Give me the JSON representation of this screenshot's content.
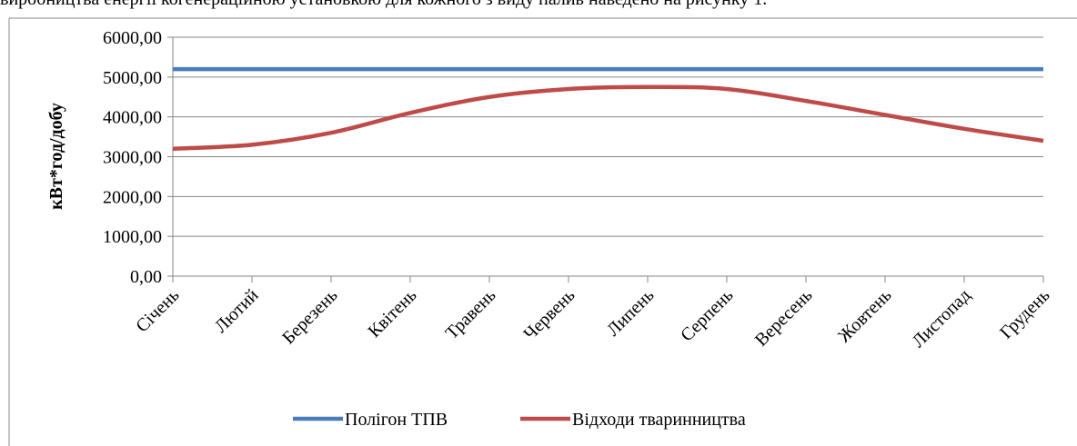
{
  "page_text": "виробництва енергії когенераційною установкою для кожного з виду палив наведено на рисунку 1.",
  "chart_data": {
    "type": "line",
    "y_label": "кВт*год/добу",
    "categories": [
      "Січень",
      "Лютий",
      "Березень",
      "Квітень",
      "Травень",
      "Червень",
      "Липень",
      "Серпень",
      "Вересень",
      "Жовтень",
      "Листопад",
      "Грудень"
    ],
    "series": [
      {
        "name": "Полігон ТПВ",
        "color": "#4a7ebb",
        "values": [
          5200,
          5200,
          5200,
          5200,
          5200,
          5200,
          5200,
          5200,
          5200,
          5200,
          5200,
          5200
        ]
      },
      {
        "name": "Відходи тваринництва",
        "color": "#be4b48",
        "values": [
          3200,
          3300,
          3600,
          4100,
          4500,
          4700,
          4750,
          4700,
          4400,
          4050,
          3700,
          3400
        ]
      }
    ],
    "ylim": [
      0,
      6000
    ],
    "yticks": [
      {
        "value": 0,
        "label": "0,00"
      },
      {
        "value": 1000,
        "label": "1000,00"
      },
      {
        "value": 2000,
        "label": "2000,00"
      },
      {
        "value": 3000,
        "label": "3000,00"
      },
      {
        "value": 4000,
        "label": "4000,00"
      },
      {
        "value": 5000,
        "label": "5000,00"
      },
      {
        "value": 6000,
        "label": "6000,00"
      }
    ],
    "grid": true,
    "legend": "bottom"
  }
}
